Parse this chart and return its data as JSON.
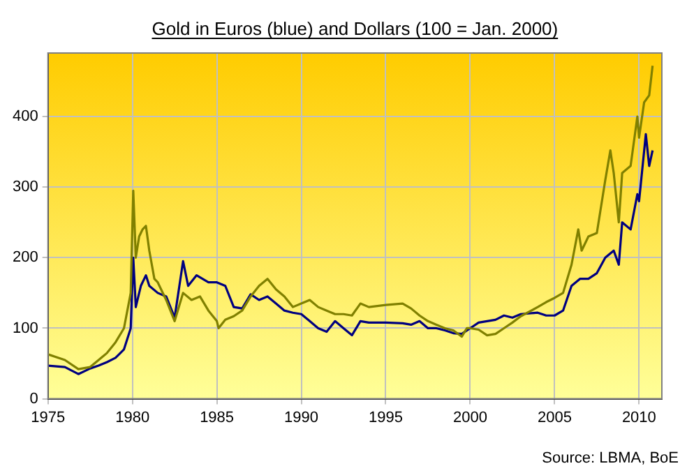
{
  "chart_data": {
    "type": "line",
    "title": "Gold in Euros (blue) and Dollars (100 = Jan. 2000)",
    "annotations": [
      "Source: LBMA, BoE"
    ],
    "xlim": [
      1975,
      2011.35
    ],
    "xticks": [
      1975,
      1980,
      1985,
      1990,
      1995,
      2000,
      2005,
      2010
    ],
    "ylim": [
      0,
      490
    ],
    "yticks": [
      0,
      100,
      200,
      300,
      400
    ],
    "grid": true,
    "legend": false,
    "marker": "none",
    "line_style": "solid",
    "series": [
      {
        "color": "#808000",
        "x": [
          1975,
          1976,
          1976.8,
          1977.5,
          1978,
          1978.5,
          1979,
          1979.5,
          1979.9,
          1980.05,
          1980.2,
          1980.4,
          1980.6,
          1980.8,
          1981,
          1981.3,
          1981.5,
          1982,
          1982.5,
          1983,
          1983.5,
          1984,
          1984.5,
          1985,
          1985.1,
          1985.5,
          1986,
          1986.5,
          1987,
          1987.5,
          1988,
          1988.5,
          1989,
          1989.5,
          1990,
          1990.5,
          1991,
          1991.5,
          1992,
          1992.5,
          1993,
          1993.5,
          1994,
          1995,
          1996,
          1996.5,
          1997,
          1997.5,
          1998,
          1998.5,
          1999,
          1999.5,
          1999.8,
          2000,
          2000.5,
          2001,
          2001.5,
          2002,
          2002.5,
          2003,
          2004,
          2004.5,
          2005,
          2005.5,
          2006,
          2006.4,
          2006.6,
          2007,
          2007.5,
          2008,
          2008.3,
          2008.5,
          2008.8,
          2009,
          2009.5,
          2009.9,
          2010,
          2010.3,
          2010.6,
          2010.8
        ],
        "values": [
          63,
          55,
          42,
          45,
          55,
          65,
          80,
          100,
          150,
          295,
          200,
          230,
          240,
          245,
          210,
          170,
          165,
          140,
          110,
          150,
          140,
          145,
          125,
          110,
          100,
          112,
          117,
          125,
          145,
          160,
          170,
          155,
          145,
          130,
          135,
          140,
          130,
          125,
          120,
          120,
          118,
          135,
          130,
          133,
          135,
          128,
          118,
          110,
          105,
          100,
          97,
          88,
          100,
          100,
          98,
          90,
          92,
          100,
          108,
          117,
          130,
          137,
          143,
          150,
          190,
          240,
          210,
          230,
          235,
          310,
          352,
          320,
          250,
          320,
          330,
          400,
          370,
          420,
          430,
          472
        ]
      },
      {
        "color": "#000080",
        "x": [
          1975,
          1976,
          1976.8,
          1977.5,
          1978,
          1978.5,
          1979,
          1979.5,
          1979.9,
          1980.05,
          1980.2,
          1980.5,
          1980.8,
          1981,
          1981.5,
          1982,
          1982.5,
          1983,
          1983.3,
          1983.8,
          1984.5,
          1985,
          1985.5,
          1986,
          1986.5,
          1987,
          1987.5,
          1988,
          1988.5,
          1989,
          1989.5,
          1990,
          1990.5,
          1991,
          1991.5,
          1992,
          1992.5,
          1993,
          1993.5,
          1994,
          1995,
          1996,
          1996.5,
          1997,
          1997.5,
          1998,
          1998.5,
          1999,
          1999.5,
          2000,
          2000.5,
          2001,
          2001.5,
          2002,
          2002.5,
          2003,
          2004,
          2004.5,
          2005,
          2005.5,
          2006,
          2006.5,
          2007,
          2007.5,
          2008,
          2008.5,
          2008.8,
          2009,
          2009.5,
          2009.9,
          2010,
          2010.4,
          2010.6,
          2010.8
        ],
        "values": [
          47,
          45,
          35,
          43,
          47,
          52,
          58,
          70,
          100,
          200,
          130,
          160,
          175,
          160,
          150,
          145,
          115,
          195,
          160,
          175,
          165,
          165,
          160,
          130,
          128,
          148,
          140,
          145,
          135,
          125,
          122,
          120,
          110,
          100,
          95,
          110,
          100,
          90,
          110,
          108,
          108,
          107,
          105,
          110,
          100,
          100,
          97,
          93,
          92,
          100,
          108,
          110,
          112,
          118,
          115,
          120,
          122,
          118,
          118,
          125,
          160,
          170,
          170,
          178,
          200,
          210,
          190,
          250,
          240,
          290,
          280,
          375,
          330,
          352
        ]
      }
    ]
  }
}
